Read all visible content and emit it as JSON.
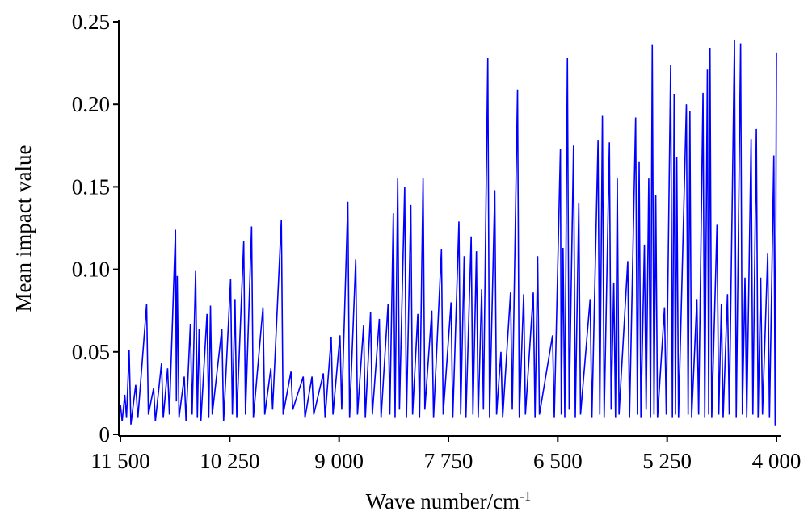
{
  "chart_data": {
    "type": "line",
    "x_label": "Wave number/cm",
    "x_label_superscript": "-1",
    "y_label": "Mean impact value",
    "xlim": [
      11500,
      4000
    ],
    "ylim": [
      0,
      0.25
    ],
    "xticks": [
      {
        "value": 11500,
        "label": "11 500"
      },
      {
        "value": 10250,
        "label": "10 250"
      },
      {
        "value": 9000,
        "label": "9 000"
      },
      {
        "value": 7750,
        "label": "7 750"
      },
      {
        "value": 6500,
        "label": "6 500"
      },
      {
        "value": 5250,
        "label": "5 250"
      },
      {
        "value": 4000,
        "label": "4 000"
      }
    ],
    "yticks": [
      0,
      0.05,
      {
        "value": 0.1,
        "label": "0.10"
      },
      0.15,
      {
        "value": 0.2,
        "label": "0.20"
      },
      0.25
    ],
    "x": [
      11500,
      11480,
      11450,
      11430,
      11400,
      11380,
      11325,
      11300,
      11200,
      11180,
      11120,
      11100,
      11030,
      11010,
      10960,
      10940,
      10870,
      10860,
      10850,
      10830,
      10770,
      10750,
      10700,
      10680,
      10640,
      10620,
      10600,
      10580,
      10510,
      10490,
      10470,
      10450,
      10340,
      10320,
      10240,
      10220,
      10190,
      10170,
      10090,
      10070,
      10000,
      9980,
      9870,
      9850,
      9780,
      9760,
      9660,
      9640,
      9550,
      9530,
      9410,
      9390,
      9310,
      9290,
      9180,
      9160,
      9090,
      9070,
      8990,
      8970,
      8900,
      8880,
      8810,
      8790,
      8720,
      8700,
      8640,
      8620,
      8540,
      8520,
      8440,
      8420,
      8380,
      8360,
      8330,
      8310,
      8250,
      8230,
      8180,
      8160,
      8100,
      8080,
      8040,
      8020,
      7940,
      7920,
      7830,
      7810,
      7720,
      7700,
      7630,
      7610,
      7570,
      7550,
      7490,
      7470,
      7430,
      7410,
      7370,
      7350,
      7300,
      7280,
      7220,
      7200,
      7150,
      7130,
      7040,
      7020,
      6960,
      6940,
      6890,
      6870,
      6780,
      6760,
      6730,
      6710,
      6560,
      6540,
      6470,
      6460,
      6440,
      6420,
      6390,
      6370,
      6320,
      6300,
      6260,
      6240,
      6130,
      6110,
      6040,
      6020,
      5990,
      5970,
      5910,
      5890,
      5860,
      5840,
      5820,
      5800,
      5700,
      5680,
      5610,
      5590,
      5570,
      5550,
      5510,
      5490,
      5460,
      5440,
      5420,
      5400,
      5380,
      5360,
      5280,
      5260,
      5210,
      5190,
      5170,
      5155,
      5140,
      5120,
      5030,
      5010,
      4990,
      4970,
      4910,
      4890,
      4840,
      4820,
      4790,
      4775,
      4760,
      4740,
      4680,
      4660,
      4630,
      4610,
      4560,
      4540,
      4480,
      4460,
      4410,
      4390,
      4360,
      4340,
      4290,
      4270,
      4230,
      4210,
      4180,
      4160,
      4100,
      4080,
      4030,
      4015,
      4000
    ],
    "series": [
      {
        "name": "Mean impact value",
        "color": "#0000ff",
        "values": [
          0.018,
          0.008,
          0.024,
          0.01,
          0.051,
          0.006,
          0.03,
          0.01,
          0.079,
          0.012,
          0.028,
          0.008,
          0.043,
          0.01,
          0.04,
          0.012,
          0.124,
          0.02,
          0.096,
          0.01,
          0.035,
          0.008,
          0.067,
          0.012,
          0.099,
          0.01,
          0.064,
          0.008,
          0.073,
          0.01,
          0.078,
          0.012,
          0.064,
          0.008,
          0.094,
          0.012,
          0.082,
          0.01,
          0.117,
          0.012,
          0.126,
          0.01,
          0.077,
          0.012,
          0.04,
          0.015,
          0.13,
          0.012,
          0.038,
          0.015,
          0.035,
          0.01,
          0.035,
          0.012,
          0.037,
          0.01,
          0.059,
          0.012,
          0.06,
          0.015,
          0.141,
          0.01,
          0.106,
          0.012,
          0.066,
          0.01,
          0.074,
          0.012,
          0.07,
          0.01,
          0.079,
          0.012,
          0.134,
          0.01,
          0.155,
          0.015,
          0.15,
          0.01,
          0.139,
          0.012,
          0.073,
          0.01,
          0.155,
          0.015,
          0.075,
          0.01,
          0.112,
          0.012,
          0.08,
          0.01,
          0.129,
          0.012,
          0.108,
          0.01,
          0.12,
          0.012,
          0.111,
          0.01,
          0.088,
          0.015,
          0.228,
          0.01,
          0.148,
          0.012,
          0.05,
          0.01,
          0.086,
          0.015,
          0.209,
          0.01,
          0.085,
          0.012,
          0.086,
          0.01,
          0.108,
          0.012,
          0.06,
          0.01,
          0.173,
          0.012,
          0.113,
          0.01,
          0.228,
          0.015,
          0.175,
          0.01,
          0.14,
          0.012,
          0.082,
          0.01,
          0.178,
          0.012,
          0.193,
          0.01,
          0.177,
          0.015,
          0.092,
          0.01,
          0.155,
          0.012,
          0.105,
          0.01,
          0.192,
          0.012,
          0.165,
          0.01,
          0.115,
          0.015,
          0.155,
          0.01,
          0.236,
          0.012,
          0.145,
          0.01,
          0.077,
          0.012,
          0.224,
          0.01,
          0.206,
          0.012,
          0.168,
          0.01,
          0.2,
          0.012,
          0.196,
          0.01,
          0.082,
          0.012,
          0.207,
          0.01,
          0.221,
          0.012,
          0.234,
          0.01,
          0.127,
          0.012,
          0.079,
          0.01,
          0.085,
          0.012,
          0.239,
          0.01,
          0.237,
          0.012,
          0.095,
          0.01,
          0.179,
          0.012,
          0.185,
          0.01,
          0.095,
          0.012,
          0.11,
          0.01,
          0.169,
          0.005,
          0.231
        ]
      }
    ]
  }
}
